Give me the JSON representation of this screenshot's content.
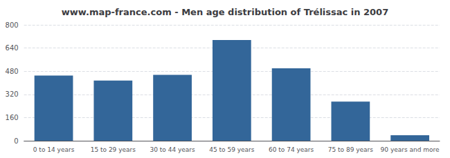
{
  "chart_data": {
    "type": "bar",
    "title": "www.map-france.com - Men age distribution of Trélissac in 2007",
    "categories": [
      "0 to 14 years",
      "15 to 29 years",
      "30 to 44 years",
      "45 to 59 years",
      "60 to 74 years",
      "75 to 89 years",
      "90 years and more"
    ],
    "values": [
      450,
      415,
      455,
      695,
      500,
      270,
      38
    ],
    "color": "#336699",
    "ylim": [
      0,
      800
    ],
    "yticks": [
      0,
      160,
      320,
      480,
      640,
      800
    ],
    "grid": true
  }
}
